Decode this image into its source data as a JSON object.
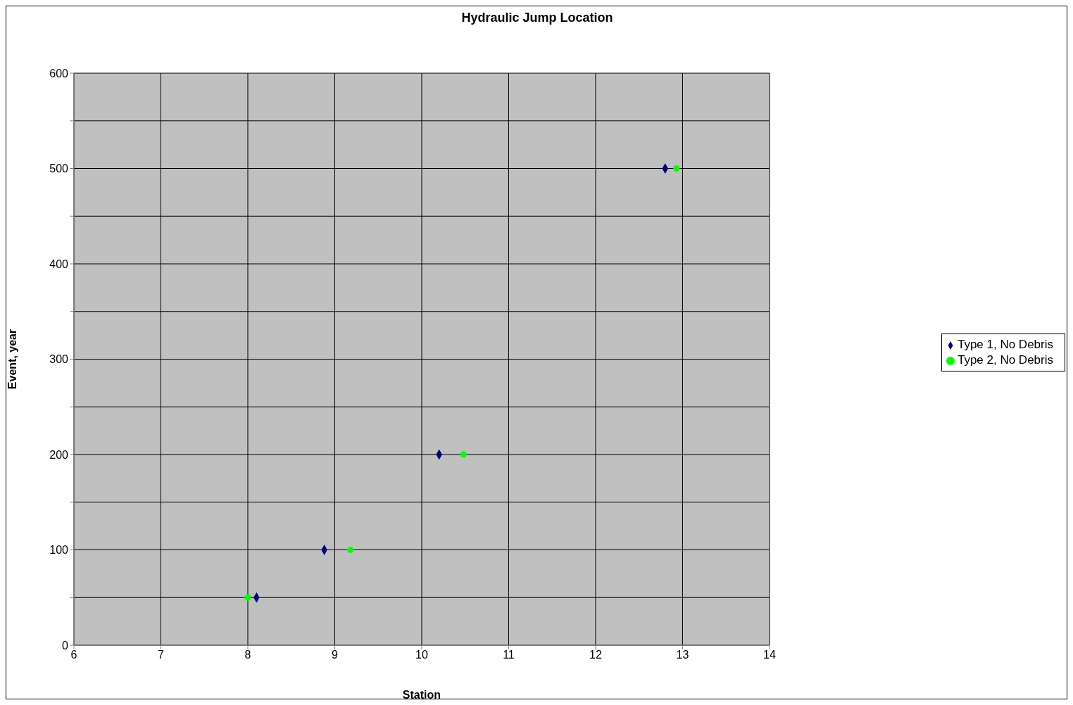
{
  "chart_data": {
    "type": "scatter",
    "title": "Hydraulic Jump Location",
    "xlabel": "Station",
    "ylabel": "Event, year",
    "xlim": [
      6,
      14
    ],
    "xticks": [
      6,
      7,
      8,
      9,
      10,
      11,
      12,
      13,
      14
    ],
    "ylim": [
      0,
      600
    ],
    "yticks": [
      0,
      {
        "value": 50,
        "label": null
      },
      100,
      {
        "value": 150,
        "label": null
      },
      200,
      {
        "value": 250,
        "label": null
      },
      300,
      {
        "value": 350,
        "label": null
      },
      400,
      {
        "value": 450,
        "label": null
      },
      500,
      {
        "value": 550,
        "label": null
      },
      600
    ],
    "grid": true,
    "legend": "right",
    "series": [
      {
        "name": "Type 1, No Debris",
        "color": "#000080",
        "marker": "diamond",
        "x": [
          8.1,
          8.88,
          10.2,
          12.8
        ],
        "values": [
          50,
          100,
          200,
          500
        ]
      },
      {
        "name": "Type 2, No Debris",
        "color": "#00ff00",
        "marker": "circle",
        "x": [
          8.0,
          9.18,
          10.48,
          12.93
        ],
        "values": [
          50,
          100,
          200,
          500
        ]
      }
    ]
  }
}
